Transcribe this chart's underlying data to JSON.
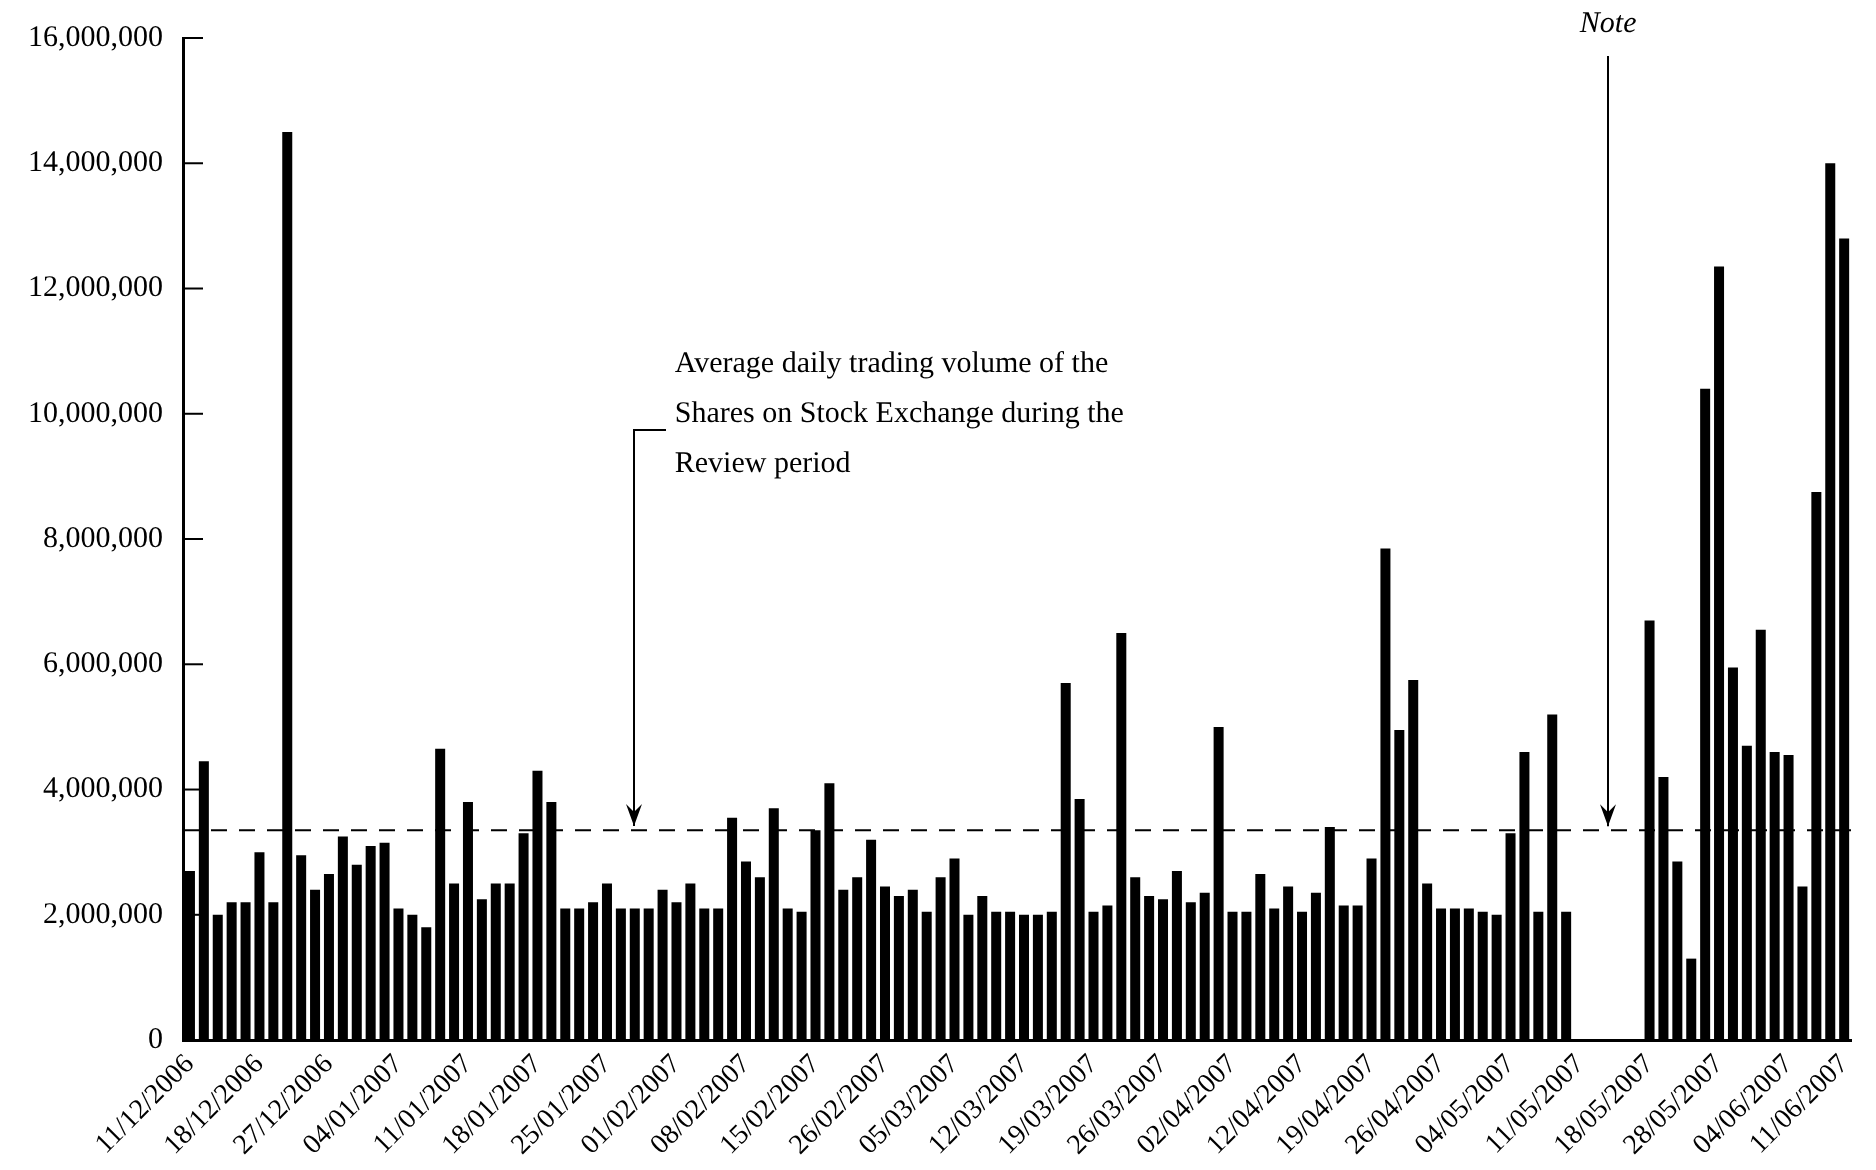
{
  "chart_data": {
    "type": "bar",
    "categories": [
      "11/12/2006",
      null,
      null,
      null,
      null,
      "18/12/2006",
      null,
      null,
      null,
      null,
      "27/12/2006",
      null,
      null,
      null,
      null,
      "04/01/2007",
      null,
      null,
      null,
      null,
      "11/01/2007",
      null,
      null,
      null,
      null,
      "18/01/2007",
      null,
      null,
      null,
      null,
      "25/01/2007",
      null,
      null,
      null,
      null,
      "01/02/2007",
      null,
      null,
      null,
      null,
      "08/02/2007",
      null,
      null,
      null,
      null,
      "15/02/2007",
      null,
      null,
      null,
      null,
      "26/02/2007",
      null,
      null,
      null,
      null,
      "05/03/2007",
      null,
      null,
      null,
      null,
      "12/03/2007",
      null,
      null,
      null,
      null,
      "19/03/2007",
      null,
      null,
      null,
      null,
      "26/03/2007",
      null,
      null,
      null,
      null,
      "02/04/2007",
      null,
      null,
      null,
      null,
      "12/04/2007",
      null,
      null,
      null,
      null,
      "19/04/2007",
      null,
      null,
      null,
      null,
      "26/04/2007",
      null,
      null,
      null,
      null,
      "04/05/2007",
      null,
      null,
      null,
      null,
      "11/05/2007",
      null,
      null,
      null,
      null,
      "18/05/2007",
      null,
      null,
      null,
      null,
      "28/05/2007",
      null,
      null,
      null,
      null,
      "04/06/2007",
      null,
      null,
      null,
      "11/06/2007"
    ],
    "values": [
      2700000,
      4450000,
      2000000,
      2200000,
      2200000,
      3000000,
      2200000,
      14500000,
      2950000,
      2400000,
      2650000,
      3250000,
      2800000,
      3100000,
      3150000,
      2100000,
      2000000,
      1800000,
      4650000,
      2500000,
      3800000,
      2250000,
      2500000,
      2500000,
      3300000,
      4300000,
      3800000,
      2100000,
      2100000,
      2200000,
      2500000,
      2100000,
      2100000,
      2100000,
      2400000,
      2200000,
      2500000,
      2100000,
      2100000,
      3550000,
      2850000,
      2600000,
      3700000,
      2100000,
      2050000,
      3350000,
      4100000,
      2400000,
      2600000,
      3200000,
      2450000,
      2300000,
      2400000,
      2050000,
      2600000,
      2900000,
      2000000,
      2300000,
      2050000,
      2050000,
      2000000,
      2000000,
      2050000,
      5700000,
      3850000,
      2050000,
      2150000,
      6500000,
      2600000,
      2300000,
      2250000,
      2700000,
      2200000,
      2350000,
      5000000,
      2050000,
      2050000,
      2650000,
      2100000,
      2450000,
      2050000,
      2350000,
      3400000,
      2150000,
      2150000,
      2900000,
      7850000,
      4950000,
      5750000,
      2500000,
      2100000,
      2100000,
      2100000,
      2050000,
      2000000,
      3300000,
      4600000,
      2050000,
      5200000,
      2050000,
      null,
      null,
      null,
      null,
      null,
      6700000,
      4200000,
      2850000,
      1300000,
      10400000,
      12350000,
      5950000,
      4700000,
      6550000,
      4600000,
      4550000,
      2450000,
      8750000,
      14000000,
      12800000
    ],
    "color": "#000000",
    "ylim": [
      0,
      16000000
    ],
    "yticks": [
      {
        "value": 0,
        "label": "0"
      },
      {
        "value": 2000000,
        "label": "2,000,000"
      },
      {
        "value": 4000000,
        "label": "4,000,000"
      },
      {
        "value": 6000000,
        "label": "6,000,000"
      },
      {
        "value": 8000000,
        "label": "8,000,000"
      },
      {
        "value": 10000000,
        "label": "10,000,000"
      },
      {
        "value": 12000000,
        "label": "12,000,000"
      },
      {
        "value": 14000000,
        "label": "14,000,000"
      },
      {
        "value": 16000000,
        "label": "16,000,000"
      }
    ],
    "ref_lines": [
      {
        "axis": "y",
        "value": 3350000,
        "label": "Average daily trading volume of the Shares on Stock Exchange during the Review period",
        "line_style": "dashed",
        "color": "#000000"
      }
    ],
    "annotations": [
      "Note"
    ],
    "grid": false,
    "legend": false
  }
}
